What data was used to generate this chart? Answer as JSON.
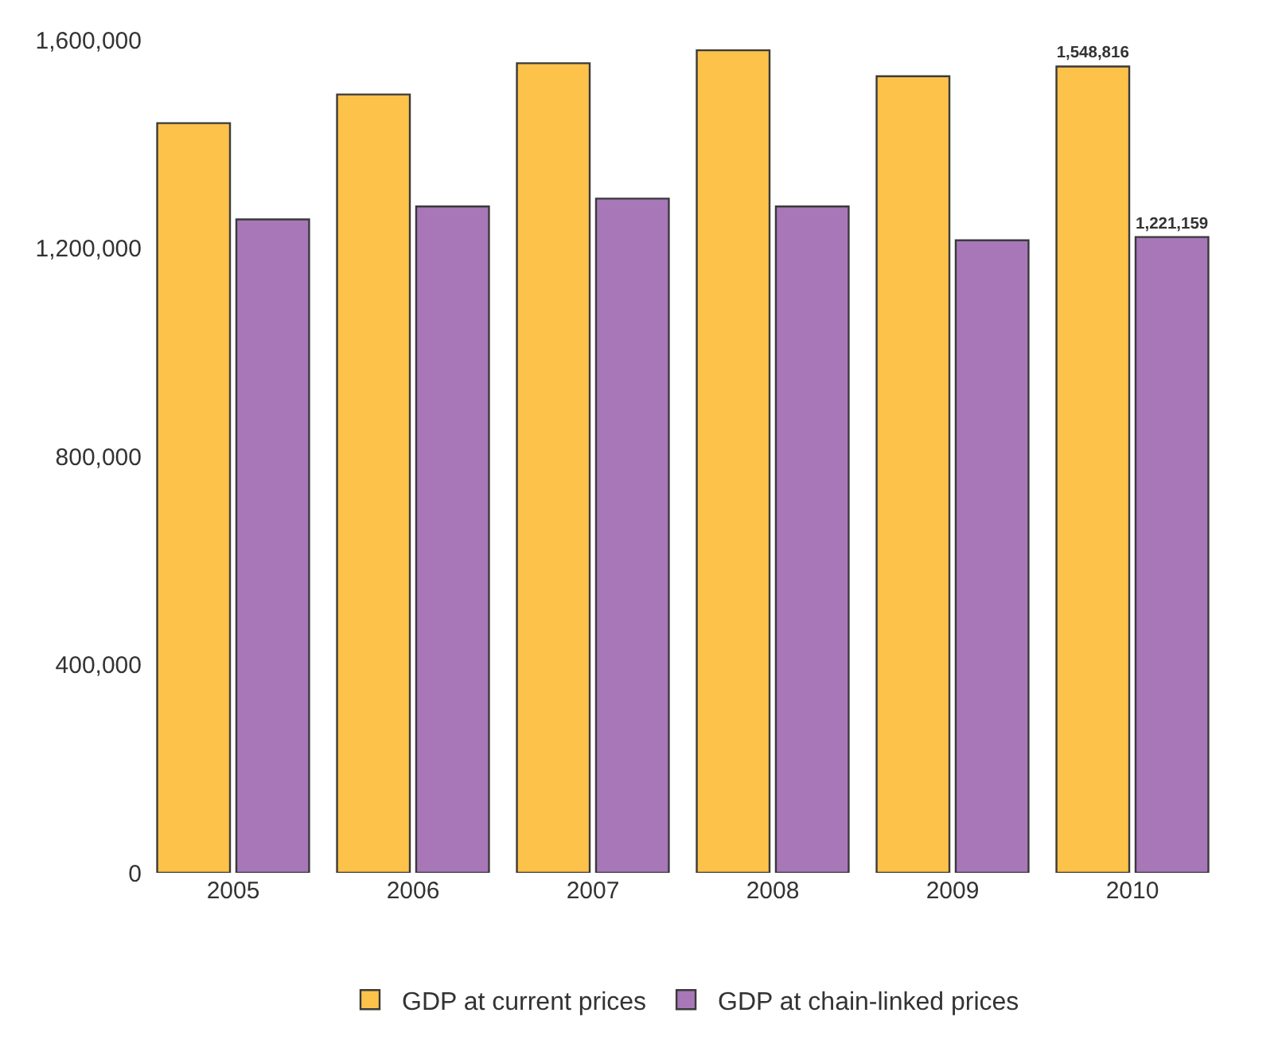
{
  "chart_data": {
    "type": "bar",
    "categories": [
      "2005",
      "2006",
      "2007",
      "2008",
      "2009",
      "2010"
    ],
    "series": [
      {
        "name": "GDP at current prices",
        "color": "#fcc24a",
        "values": [
          1440000,
          1495000,
          1555000,
          1580000,
          1530000,
          1548816
        ],
        "value_labels": [
          null,
          null,
          null,
          null,
          null,
          "1,548,816"
        ]
      },
      {
        "name": "GDP at chain-linked prices",
        "color": "#a777b8",
        "values": [
          1255000,
          1280000,
          1295000,
          1280000,
          1215000,
          1221159
        ],
        "value_labels": [
          null,
          null,
          null,
          null,
          null,
          "1,221,159"
        ]
      }
    ],
    "ylim": [
      0,
      1600000
    ],
    "yticks": [
      {
        "value": 0,
        "label": "0"
      },
      {
        "value": 400000,
        "label": "400,000"
      },
      {
        "value": 800000,
        "label": "800,000"
      },
      {
        "value": 1200000,
        "label": "1,200,000"
      },
      {
        "value": 1600000,
        "label": "1,600,000"
      }
    ],
    "legend": "bottom"
  }
}
